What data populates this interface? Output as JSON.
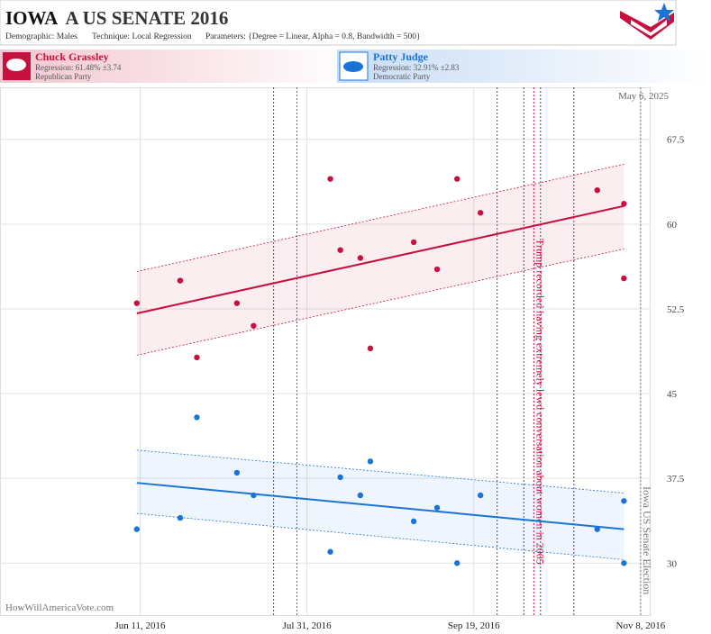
{
  "header": {
    "state": "IOWA",
    "title": "A US SENATE 2016",
    "subtitle": [
      "Demographic: Males",
      "Technique: Local Regression",
      "Parameters: {Degree = Linear, Alpha = 0.8, Bandwidth = 500}"
    ]
  },
  "candidates": [
    {
      "name": "Chuck Grassley",
      "regression": "Regression: 61.48% ±3.74",
      "party": "Republican Party"
    },
    {
      "name": "Patty Judge",
      "regression": "Regression: 32.91% ±2.83",
      "party": "Democratic Party"
    }
  ],
  "chart_data": {
    "type": "scatter",
    "date_stamp": "May 6, 2025",
    "watermark": "HowWillAmericaVote.com",
    "xlim": [
      "2016-04-30",
      "2016-11-11"
    ],
    "ylim": [
      25.4,
      72.1
    ],
    "xticks": [
      {
        "value": "2016-06-11",
        "label": "Jun 11, 2016"
      },
      {
        "value": "2016-07-31",
        "label": "Jul 31, 2016"
      },
      {
        "value": "2016-09-19",
        "label": "Sep 19, 2016"
      },
      {
        "value": "2016-11-08",
        "label": "Nov 8, 2016"
      }
    ],
    "yticks": [
      30,
      37.5,
      45,
      52.5,
      60,
      67.5
    ],
    "grid": true,
    "series": [
      {
        "name": "Chuck Grassley",
        "color": "#c8103e",
        "x": [
          "2016-06-10",
          "2016-06-23",
          "2016-06-28",
          "2016-07-10",
          "2016-07-15",
          "2016-08-07",
          "2016-08-10",
          "2016-08-16",
          "2016-08-19",
          "2016-09-01",
          "2016-09-08",
          "2016-09-14",
          "2016-09-21",
          "2016-10-26",
          "2016-11-03",
          "2016-11-03"
        ],
        "values": [
          53.0,
          55.0,
          48.2,
          53.0,
          51.0,
          64.0,
          57.7,
          57.0,
          49.0,
          58.4,
          56.0,
          64.0,
          61.0,
          63.0,
          61.8,
          55.2
        ],
        "fit": {
          "x": [
            "2016-06-10",
            "2016-11-03"
          ],
          "values": [
            52.1,
            61.6
          ],
          "upper": [
            55.8,
            65.3
          ],
          "lower": [
            48.4,
            57.8
          ]
        }
      },
      {
        "name": "Patty Judge",
        "color": "#1a74d8",
        "x": [
          "2016-06-10",
          "2016-06-23",
          "2016-06-28",
          "2016-07-10",
          "2016-07-15",
          "2016-08-07",
          "2016-08-10",
          "2016-08-16",
          "2016-08-19",
          "2016-09-01",
          "2016-09-08",
          "2016-09-14",
          "2016-09-21",
          "2016-10-26",
          "2016-11-03",
          "2016-11-03"
        ],
        "values": [
          33.0,
          34.0,
          42.9,
          38.0,
          36.0,
          31.0,
          37.6,
          36.0,
          39.0,
          33.7,
          34.9,
          30.0,
          36.0,
          33.0,
          35.5,
          30.0
        ],
        "fit": {
          "x": [
            "2016-06-10",
            "2016-11-03"
          ],
          "values": [
            37.1,
            33.0
          ],
          "upper": [
            40.0,
            36.2
          ],
          "lower": [
            34.4,
            30.3
          ]
        }
      }
    ],
    "events": [
      {
        "date": "2016-07-21",
        "color": "#a02a6a"
      },
      {
        "date": "2016-07-28",
        "color": "#2a6ebd"
      },
      {
        "date": "2016-09-26",
        "color": "#6a3a6a"
      },
      {
        "date": "2016-10-04",
        "color": "#7a2a5a"
      },
      {
        "date": "2016-10-07",
        "color": "#c8103e",
        "label": "Trump recorded having extremely lewd conversation about women in 2005"
      },
      {
        "date": "2016-10-09",
        "color": "#7a2a6a"
      },
      {
        "date": "2016-10-19",
        "color": "#6a3a6a"
      },
      {
        "date": "2016-11-08",
        "color": "#777777",
        "label": "Iowa US Senate Election"
      }
    ]
  }
}
